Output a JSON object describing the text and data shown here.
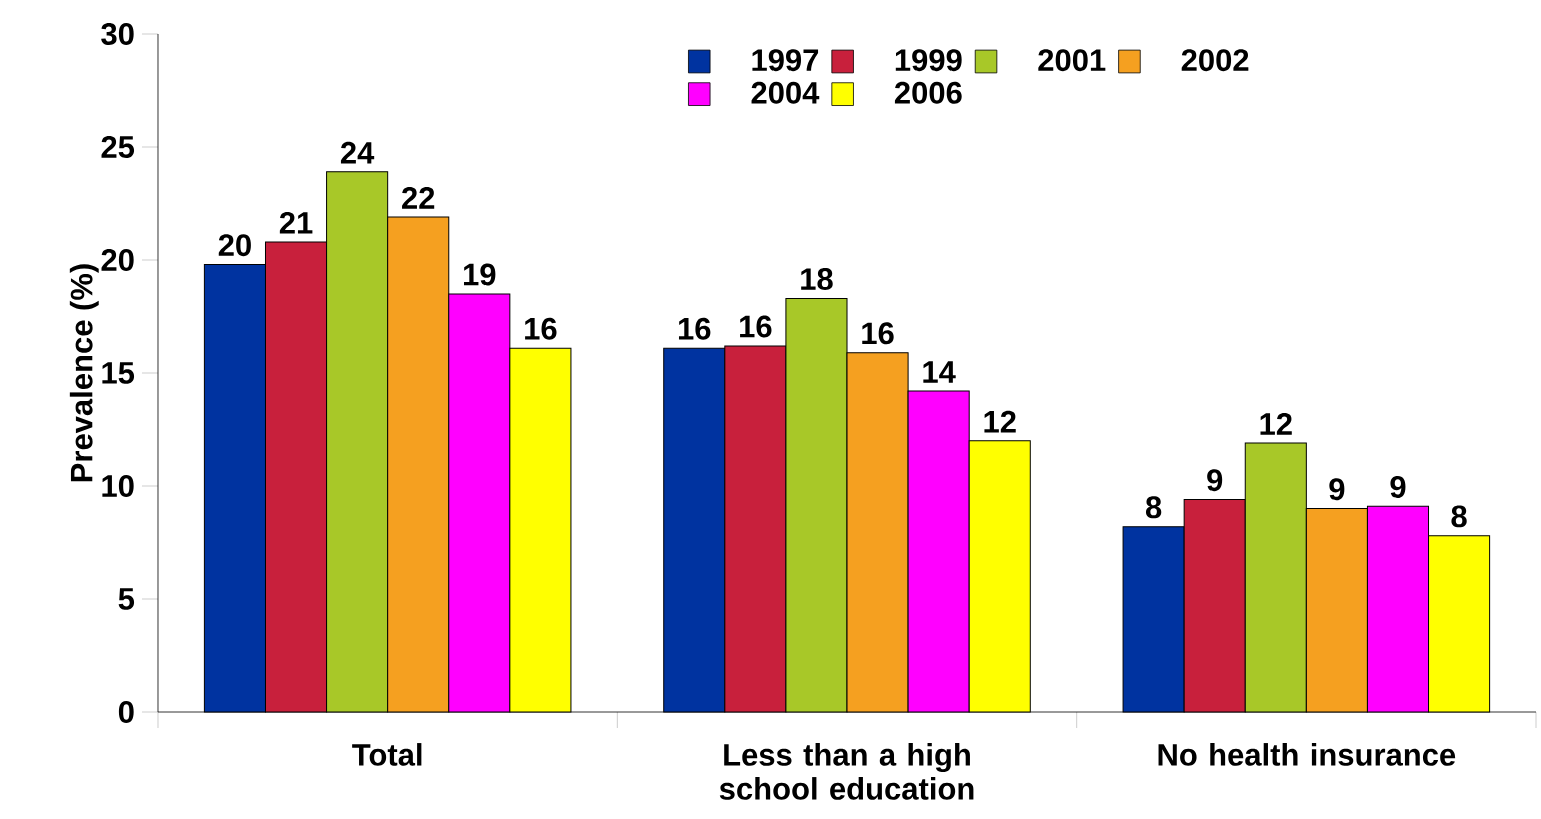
{
  "chart_data": {
    "type": "bar",
    "ylabel": "Prevalence (%)",
    "categories": [
      "Total",
      "Less than a high school education",
      "No health insurance"
    ],
    "series": [
      {
        "name": "1997",
        "color": "#0033a0",
        "values": [
          19.8,
          16.1,
          8.2
        ],
        "value_labels": [
          "20",
          "16",
          "8"
        ]
      },
      {
        "name": "1999",
        "color": "#c8203c",
        "values": [
          20.8,
          16.2,
          9.4
        ],
        "value_labels": [
          "21",
          "16",
          "9"
        ]
      },
      {
        "name": "2001",
        "color": "#a8c828",
        "values": [
          23.9,
          18.3,
          11.9
        ],
        "value_labels": [
          "24",
          "18",
          "12"
        ]
      },
      {
        "name": "2002",
        "color": "#f5a020",
        "values": [
          21.9,
          15.9,
          9.0
        ],
        "value_labels": [
          "22",
          "16",
          "9"
        ]
      },
      {
        "name": "2004",
        "color": "#ff00ff",
        "values": [
          18.5,
          14.2,
          9.1
        ],
        "value_labels": [
          "19",
          "14",
          "9"
        ]
      },
      {
        "name": "2006",
        "color": "#ffff00",
        "values": [
          16.1,
          12.0,
          7.8
        ],
        "value_labels": [
          "16",
          "12",
          "8"
        ]
      }
    ],
    "ylim": [
      0,
      30
    ],
    "yticks": [
      0,
      5,
      10,
      15,
      20,
      25,
      30
    ],
    "grid": false,
    "legend": "top right"
  }
}
